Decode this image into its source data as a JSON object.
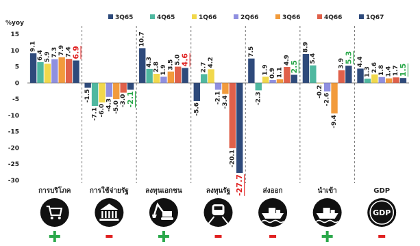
{
  "chart_data": {
    "type": "bar",
    "ylabel": "%yoy",
    "ylim": [
      -30,
      15
    ],
    "yticks": [
      15,
      10,
      5,
      0,
      -5,
      -10,
      -15,
      -20,
      -25,
      -30
    ],
    "grid": false,
    "legend": "top-center",
    "categories": [
      "การบริโภค",
      "การใช้จ่ายรัฐ",
      "ลงทุนเอกชน",
      "ลงทุนรัฐ",
      "ส่งออก",
      "นำเข้า",
      "GDP"
    ],
    "series": [
      {
        "name": "3Q65",
        "color": "#2e4a7b",
        "values": [
          9.1,
          -1.5,
          10.7,
          -5.6,
          7.5,
          8.9,
          4.4
        ]
      },
      {
        "name": "4Q65",
        "color": "#4fb8a0",
        "values": [
          6.4,
          -7.1,
          4.3,
          2.7,
          -2.3,
          5.4,
          1.3
        ]
      },
      {
        "name": "1Q66",
        "color": "#f1d84b",
        "values": [
          5.9,
          -6.0,
          2.8,
          4.2,
          1.9,
          -0.2,
          2.6
        ]
      },
      {
        "name": "2Q66",
        "color": "#8f8fe0",
        "values": [
          7.3,
          -4.3,
          1.9,
          -2.1,
          0.9,
          -2.6,
          1.8
        ]
      },
      {
        "name": "3Q66",
        "color": "#f29b3c",
        "values": [
          7.9,
          -5.0,
          3.5,
          -3.4,
          1.1,
          -9.4,
          1.4
        ]
      },
      {
        "name": "4Q66",
        "color": "#e0604a",
        "values": [
          7.4,
          -3.0,
          5.0,
          -20.1,
          4.9,
          3.9,
          1.7
        ]
      },
      {
        "name": "1Q67",
        "color": "#2e4a7b",
        "values": [
          6.9,
          -2.1,
          4.6,
          -27.7,
          2.5,
          5.3,
          1.5
        ]
      }
    ],
    "data_labels": [
      [
        "9.1",
        "6.4",
        "5.9",
        "7.3",
        "7.9",
        "7.4",
        "6.9"
      ],
      [
        "-1.5",
        "-7.1",
        "-6.0",
        "-4.3",
        "-5.0",
        "-3.0",
        "-2.1"
      ],
      [
        "10.7",
        "4.3",
        "2.8",
        "1.9",
        "3.5",
        "5.0",
        "4.6"
      ],
      [
        "-5.6",
        "2.7",
        "4.2",
        "-2.1",
        "-3.4",
        "-20.1",
        "-27.7"
      ],
      [
        "7.5",
        "-2.3",
        "1.9",
        "0.9",
        "1.1",
        "4.9",
        "2.5"
      ],
      [
        "8.9",
        "5.4",
        "-0.2",
        "-2.6",
        "-9.4",
        "3.9",
        "5.3"
      ],
      [
        "4.4",
        "1.3",
        "2.6",
        "1.8",
        "1.4",
        "1.7",
        "1.5"
      ]
    ],
    "latest_label_colors": [
      "#e02020",
      "#2aa84a",
      "#e02020",
      "#e02020",
      "#2aa84a",
      "#2aa84a",
      "#2aa84a"
    ],
    "signs": [
      "+",
      "-",
      "+",
      "-",
      "-",
      "+",
      "-"
    ],
    "sign_colors": {
      "+": "#2aa84a",
      "-": "#e02020"
    },
    "icons": [
      "shopping-cart-icon",
      "government-building-icon",
      "excavator-icon",
      "train-icon",
      "cargo-ship-icon",
      "cargo-ship-import-icon",
      "gdp-badge-icon"
    ]
  }
}
